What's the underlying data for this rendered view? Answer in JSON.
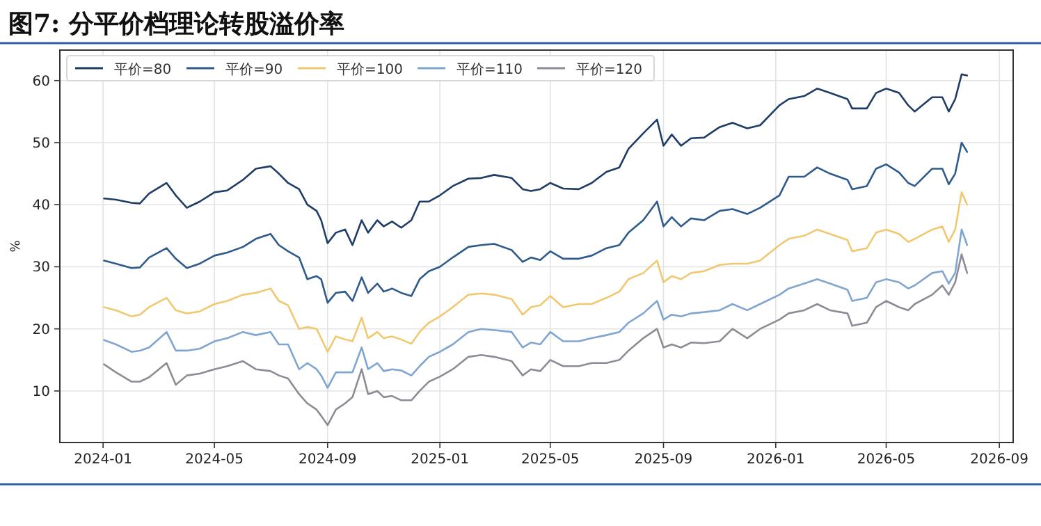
{
  "chart_data": {
    "type": "line",
    "title": "图7: 分平价档理论转股溢价率",
    "ylabel": "%",
    "x": [
      "2024-01-02",
      "2024-01-15",
      "2024-02-01",
      "2024-02-10",
      "2024-02-20",
      "2024-03-10",
      "2024-03-20",
      "2024-04-01",
      "2024-04-15",
      "2024-05-01",
      "2024-05-15",
      "2024-06-01",
      "2024-06-15",
      "2024-07-01",
      "2024-07-10",
      "2024-07-20",
      "2024-08-01",
      "2024-08-10",
      "2024-08-20",
      "2024-08-25",
      "2024-09-01",
      "2024-09-10",
      "2024-09-20",
      "2024-09-28",
      "2024-10-08",
      "2024-10-15",
      "2024-10-25",
      "2024-11-01",
      "2024-11-10",
      "2024-11-20",
      "2024-12-01",
      "2024-12-10",
      "2024-12-20",
      "2025-01-01",
      "2025-01-15",
      "2025-02-01",
      "2025-02-15",
      "2025-03-01",
      "2025-03-20",
      "2025-04-01",
      "2025-04-10",
      "2025-04-20",
      "2025-05-01",
      "2025-05-15",
      "2025-06-01",
      "2025-06-15",
      "2025-07-01",
      "2025-07-15",
      "2025-07-25",
      "2025-08-10",
      "2025-08-25",
      "2025-09-01",
      "2025-09-10",
      "2025-09-20",
      "2025-10-01",
      "2025-10-15",
      "2025-11-01",
      "2025-11-15",
      "2025-12-01",
      "2025-12-15",
      "2026-01-05",
      "2026-01-15",
      "2026-02-01",
      "2026-02-15",
      "2026-03-01",
      "2026-03-20",
      "2026-03-25",
      "2026-04-10",
      "2026-04-20",
      "2026-05-01",
      "2026-05-15",
      "2026-05-25",
      "2026-06-01",
      "2026-06-20",
      "2026-07-01",
      "2026-07-08",
      "2026-07-15",
      "2026-07-22",
      "2026-07-28"
    ],
    "series": [
      {
        "name": "平价=80",
        "color": "#1f3c64",
        "values": [
          41,
          40.8,
          40.3,
          40.2,
          41.8,
          43.5,
          41.5,
          39.5,
          40.5,
          42,
          42.3,
          44,
          45.8,
          46.2,
          45,
          43.5,
          42.5,
          40,
          39,
          37.5,
          33.8,
          35.5,
          36,
          33.5,
          37.5,
          35.5,
          37.5,
          36.5,
          37.3,
          36.3,
          37.5,
          40.5,
          40.5,
          41.5,
          43,
          44.2,
          44.3,
          44.8,
          44.3,
          42.5,
          42.2,
          42.5,
          43.5,
          42.6,
          42.5,
          43.5,
          45.3,
          46,
          49,
          51.5,
          53.7,
          49.5,
          51.3,
          49.5,
          50.7,
          50.8,
          52.5,
          53.2,
          52.3,
          52.8,
          56,
          57,
          57.5,
          58.7,
          58,
          57,
          55.5,
          55.5,
          58,
          58.7,
          58,
          56,
          55,
          57.3,
          57.3,
          55,
          57,
          61,
          60.8
        ]
      },
      {
        "name": "平价=90",
        "color": "#2e5a8c",
        "values": [
          31,
          30.5,
          29.8,
          29.9,
          31.5,
          33,
          31.3,
          29.8,
          30.5,
          31.8,
          32.3,
          33.2,
          34.5,
          35.3,
          33.5,
          32.5,
          31.5,
          28,
          28.5,
          28,
          24.2,
          25.8,
          26,
          24.5,
          28.3,
          25.8,
          27.3,
          26,
          26.5,
          25.8,
          25.3,
          28,
          29.3,
          30,
          31.5,
          33.2,
          33.5,
          33.7,
          32.7,
          30.8,
          31.5,
          31.1,
          32.5,
          31.3,
          31.3,
          31.8,
          33,
          33.5,
          35.5,
          37.5,
          40.5,
          36.5,
          38,
          36.5,
          37.8,
          37.5,
          39,
          39.3,
          38.5,
          39.5,
          41.5,
          44.5,
          44.5,
          46,
          45,
          44,
          42.5,
          43,
          45.8,
          46.5,
          45.2,
          43.5,
          43,
          45.8,
          45.8,
          43.3,
          45,
          50,
          48.5
        ]
      },
      {
        "name": "平价=100",
        "color": "#f0c870",
        "values": [
          23.5,
          23,
          22,
          22.3,
          23.5,
          25,
          23,
          22.5,
          22.8,
          24,
          24.5,
          25.5,
          25.8,
          26.5,
          24.5,
          23.8,
          20,
          20.3,
          20,
          18.5,
          16.3,
          18.8,
          18.3,
          18,
          21.8,
          18.5,
          19.5,
          18.5,
          18.8,
          18.3,
          17.6,
          19.5,
          21,
          22,
          23.5,
          25.5,
          25.7,
          25.5,
          24.8,
          22.3,
          23.5,
          23.8,
          25.3,
          23.5,
          24,
          24,
          25,
          26,
          28,
          29,
          31,
          27.5,
          28.5,
          28,
          29,
          29.3,
          30.3,
          30.5,
          30.5,
          31,
          33.5,
          34.5,
          35,
          36,
          35.3,
          34.3,
          32.5,
          33,
          35.5,
          36,
          35.3,
          34,
          34.5,
          36,
          36.5,
          34,
          36,
          42,
          40
        ]
      },
      {
        "name": "平价=110",
        "color": "#7fa5d0",
        "values": [
          18.2,
          17.5,
          16.3,
          16.5,
          17,
          19.5,
          16.5,
          16.5,
          16.8,
          18,
          18.5,
          19.5,
          19,
          19.5,
          17.5,
          17.5,
          13.5,
          14.5,
          13.5,
          12.5,
          10.5,
          13,
          13,
          13,
          17,
          13.5,
          14.5,
          13.2,
          13.5,
          13.3,
          12.5,
          14,
          15.5,
          16.3,
          17.5,
          19.5,
          20,
          19.8,
          19.5,
          17,
          17.8,
          17.5,
          19.5,
          18,
          18,
          18.5,
          19,
          19.5,
          21,
          22.5,
          24.5,
          21.5,
          22.3,
          22,
          22.5,
          22.7,
          23,
          24,
          23,
          24,
          25.5,
          26.5,
          27.3,
          28,
          27.3,
          26.3,
          24.5,
          25,
          27.5,
          28,
          27.5,
          26.5,
          27,
          29,
          29.3,
          27.3,
          29,
          36,
          33.5
        ]
      },
      {
        "name": "平价=120",
        "color": "#8c8c96",
        "values": [
          14.3,
          13,
          11.5,
          11.5,
          12.2,
          14.5,
          11,
          12.5,
          12.8,
          13.5,
          14,
          14.8,
          13.5,
          13.2,
          12.5,
          12,
          9.5,
          8,
          7,
          6,
          4.5,
          7,
          8,
          9,
          13.5,
          9.5,
          10,
          9,
          9.2,
          8.5,
          8.5,
          10,
          11.5,
          12.3,
          13.5,
          15.5,
          15.8,
          15.5,
          14.8,
          12.5,
          13.5,
          13.2,
          15,
          14,
          14,
          14.5,
          14.5,
          15,
          16.5,
          18.5,
          20,
          17,
          17.5,
          17,
          17.8,
          17.7,
          18,
          20,
          18.5,
          20,
          21.5,
          22.5,
          23,
          24,
          23,
          22.5,
          20.5,
          21,
          23.5,
          24.5,
          23.5,
          23,
          24,
          25.5,
          27,
          25.5,
          27.5,
          32,
          29
        ]
      }
    ],
    "xlim": [
      "2023-11-15",
      "2026-09-16"
    ],
    "xticks": [
      {
        "value": "2024-01-01",
        "label": "2024-01"
      },
      {
        "value": "2024-05-01",
        "label": "2024-05"
      },
      {
        "value": "2024-09-01",
        "label": "2024-09"
      },
      {
        "value": "2025-01-01",
        "label": "2025-01"
      },
      {
        "value": "2025-05-01",
        "label": "2025-05"
      },
      {
        "value": "2025-09-01",
        "label": "2025-09"
      },
      {
        "value": "2026-01-01",
        "label": "2026-01"
      },
      {
        "value": "2026-05-01",
        "label": "2026-05"
      },
      {
        "value": "2026-09-01",
        "label": "2026-09"
      }
    ],
    "ylim": [
      1.7,
      64.9
    ],
    "yticks": [
      10,
      20,
      30,
      40,
      50,
      60
    ],
    "grid": true,
    "legend": "top left",
    "marker": "none",
    "line_style": "solid"
  }
}
